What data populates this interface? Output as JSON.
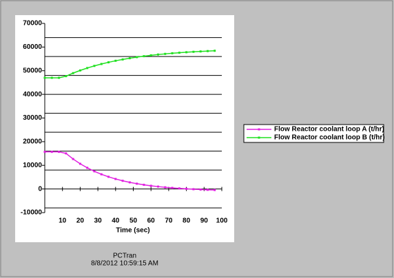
{
  "chart_data": {
    "type": "line",
    "x_label": "Time (sec)",
    "x": [
      0,
      4,
      8,
      12,
      16,
      20,
      24,
      28,
      32,
      36,
      40,
      44,
      48,
      52,
      56,
      60,
      64,
      68,
      72,
      76,
      80,
      84,
      88,
      92,
      96
    ],
    "series": [
      {
        "name": "Flow Reactor coolant loop A (t/hr)",
        "color": "#e020e0",
        "values": [
          15700,
          15700,
          15700,
          15050,
          12670,
          10650,
          8940,
          7470,
          6210,
          5150,
          4230,
          3460,
          2800,
          2240,
          1760,
          1350,
          1000,
          700,
          460,
          240,
          60,
          -100,
          -230,
          -350,
          -440
        ]
      },
      {
        "name": "Flow Reactor coolant loop B (t/hr)",
        "color": "#20e020",
        "values": [
          47000,
          47000,
          47000,
          47700,
          48980,
          50110,
          51130,
          52030,
          52840,
          53550,
          54200,
          54760,
          55280,
          55740,
          56140,
          56500,
          56830,
          57110,
          57380,
          57600,
          57810,
          57990,
          58150,
          58300,
          58430
        ]
      }
    ],
    "xlim": [
      0,
      100
    ],
    "xticks": [
      10,
      20,
      30,
      40,
      50,
      60,
      70,
      80,
      90,
      100
    ],
    "ylim": [
      -10000,
      70000
    ],
    "yticks": [
      -10000,
      0,
      10000,
      20000,
      30000,
      40000,
      50000,
      60000,
      70000
    ],
    "ygrid": [
      -8000,
      8000,
      16000,
      24000,
      32000,
      40000,
      48000,
      56000,
      64000
    ],
    "legend": "right",
    "footer": [
      "PCTran",
      "8/8/2012 10:59:15 AM"
    ]
  }
}
